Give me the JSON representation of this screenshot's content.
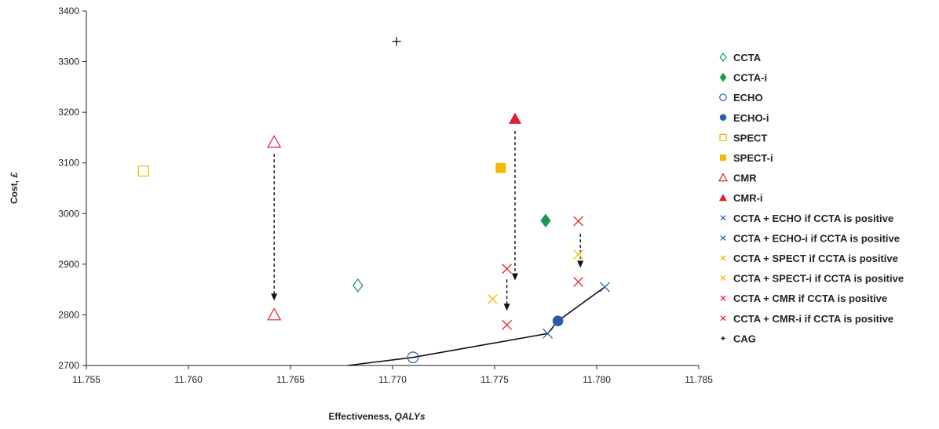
{
  "chart_data": {
    "type": "scatter",
    "xlabel": "Effectiveness, ",
    "xlabel_unit": "QALYs",
    "ylabel": "Cost, ",
    "ylabel_unit": "£",
    "xlim": [
      11.755,
      11.785
    ],
    "ylim": [
      2700,
      3400
    ],
    "x_ticks": [
      "11.755",
      "11.760",
      "11.765",
      "11.770",
      "11.775",
      "11.780",
      "11.785"
    ],
    "y_ticks": [
      "2700",
      "2800",
      "2900",
      "3000",
      "3100",
      "3200",
      "3300",
      "3400"
    ],
    "grid": false,
    "legend_position": "right",
    "series": [
      {
        "name": "CCTA",
        "marker": "diamond-open",
        "color": "#1a9850",
        "points": [
          [
            11.7683,
            2858
          ]
        ]
      },
      {
        "name": "CCTA-i",
        "marker": "diamond-filled",
        "color": "#1a9850",
        "points": [
          [
            11.7775,
            2986
          ]
        ]
      },
      {
        "name": "ECHO",
        "marker": "circle-open",
        "color": "#2a5caa",
        "points": [
          [
            11.771,
            2716
          ]
        ]
      },
      {
        "name": "ECHO-i",
        "marker": "circle-filled",
        "color": "#2a5caa",
        "points": [
          [
            11.7781,
            2788
          ]
        ]
      },
      {
        "name": "SPECT",
        "marker": "square-open",
        "color": "#f5b800",
        "points": [
          [
            11.7578,
            3084
          ]
        ]
      },
      {
        "name": "SPECT-i",
        "marker": "square-filled",
        "color": "#f5b800",
        "points": [
          [
            11.7753,
            3090
          ]
        ]
      },
      {
        "name": "CMR",
        "marker": "triangle-open",
        "color": "#e0202c",
        "points": [
          [
            11.7642,
            3141
          ],
          [
            11.7642,
            2800
          ]
        ]
      },
      {
        "name": "CMR-i",
        "marker": "triangle-filled",
        "color": "#e0202c",
        "points": [
          [
            11.776,
            3187
          ]
        ]
      },
      {
        "name": "CCTA + ECHO if CCTA is positive",
        "marker": "x",
        "color": "#2a5caa",
        "points": [
          [
            11.7776,
            2763
          ]
        ]
      },
      {
        "name": "CCTA + ECHO-i if CCTA is positive",
        "marker": "x",
        "color": "#2a5caa",
        "points": [
          [
            11.7804,
            2855
          ]
        ]
      },
      {
        "name": "CCTA + SPECT if CCTA is positive",
        "marker": "x",
        "color": "#f5b800",
        "points": [
          [
            11.7749,
            2831
          ]
        ]
      },
      {
        "name": "CCTA + SPECT-i if CCTA is positive",
        "marker": "x",
        "color": "#f5b800",
        "points": [
          [
            11.7791,
            2919
          ]
        ]
      },
      {
        "name": "CCTA + CMR if CCTA is positive",
        "marker": "x",
        "color": "#e0202c",
        "points": [
          [
            11.7756,
            2780
          ],
          [
            11.7791,
            2865
          ]
        ]
      },
      {
        "name": "CCTA + CMR-i if CCTA is positive",
        "marker": "x",
        "color": "#e0202c",
        "points": [
          [
            11.7756,
            2891
          ],
          [
            11.7791,
            2985
          ]
        ]
      },
      {
        "name": "CAG",
        "marker": "plus",
        "color": "#111111",
        "points": [
          [
            11.7702,
            3340
          ]
        ]
      }
    ],
    "frontier": [
      [
        11.7678,
        2700
      ],
      [
        11.771,
        2716
      ],
      [
        11.7776,
        2763
      ],
      [
        11.7781,
        2788
      ],
      [
        11.7804,
        2855
      ]
    ],
    "arrows": [
      {
        "from": [
          11.7642,
          3118
        ],
        "to": [
          11.7642,
          2828
        ]
      },
      {
        "from": [
          11.776,
          3163
        ],
        "to": [
          11.776,
          2868
        ]
      },
      {
        "from": [
          11.7756,
          2870
        ],
        "to": [
          11.7756,
          2808
        ]
      },
      {
        "from": [
          11.7792,
          2960
        ],
        "to": [
          11.7792,
          2893
        ]
      }
    ]
  }
}
